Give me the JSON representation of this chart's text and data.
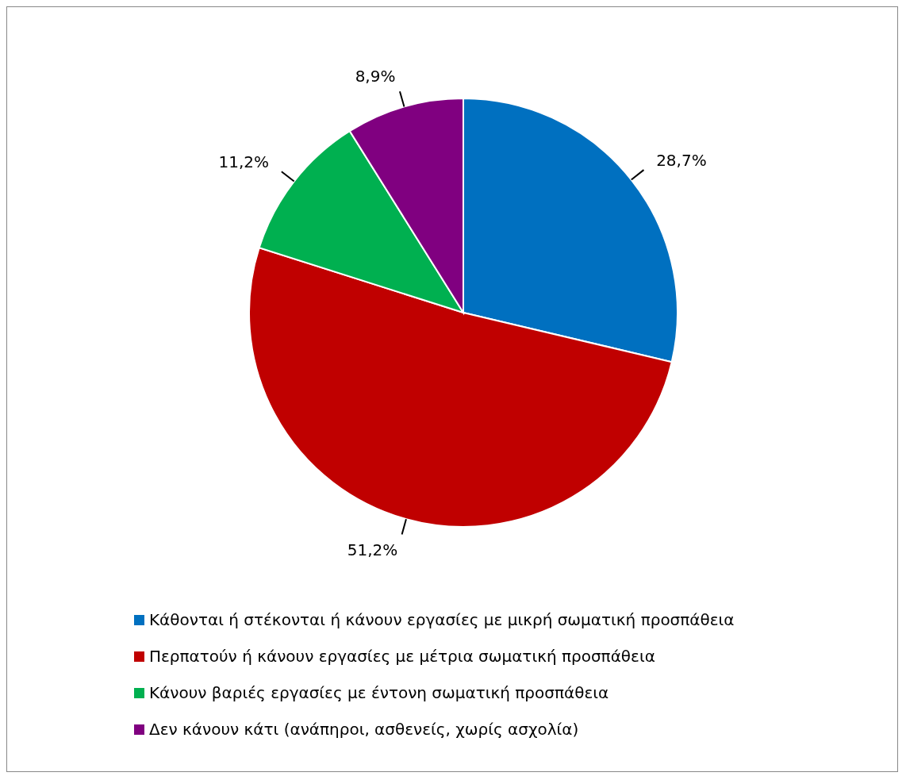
{
  "chart_data": {
    "type": "pie",
    "categories": [
      "Κάθονται ή στέκονται ή κάνουν εργασίες με μικρή σωματική προσπάθεια",
      "Περπατούν ή κάνουν εργασίες με μέτρια σωματική προσπάθεια",
      "Κάνουν βαριές εργασίες με έντονη σωματική προσπάθεια",
      "Δεν κάνουν κάτι (ανάπηροι, ασθενείς, χωρίς ασχολία)"
    ],
    "values": [
      28.7,
      51.2,
      11.2,
      8.9
    ],
    "value_labels": [
      "28,7%",
      "51,2%",
      "11,2%",
      "8,9%"
    ],
    "colors": [
      "#0070c0",
      "#c00000",
      "#00b050",
      "#800080"
    ],
    "legend": "bottom"
  }
}
